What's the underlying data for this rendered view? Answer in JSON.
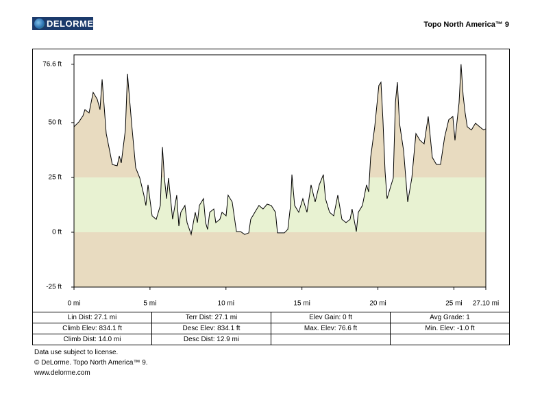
{
  "header": {
    "logo": "DELORME",
    "product": "Topo North America™ 9"
  },
  "chart_data": {
    "type": "area",
    "x": [
      0,
      0.32,
      0.59,
      0.72,
      0.99,
      1.26,
      1.53,
      1.71,
      1.85,
      2.12,
      2.39,
      2.52,
      2.84,
      2.98,
      3.11,
      3.38,
      3.52,
      3.79,
      4.06,
      4.33,
      4.6,
      4.73,
      4.87,
      5.14,
      5.41,
      5.68,
      5.82,
      5.95,
      6.09,
      6.22,
      6.49,
      6.76,
      6.9,
      7.03,
      7.3,
      7.44,
      7.71,
      7.98,
      8.12,
      8.25,
      8.52,
      8.66,
      8.79,
      8.93,
      9.2,
      9.33,
      9.6,
      9.74,
      10.01,
      10.14,
      10.41,
      10.69,
      10.96,
      11.23,
      11.5,
      11.63,
      11.9,
      12.17,
      12.44,
      12.71,
      12.98,
      13.26,
      13.39,
      13.84,
      14.07,
      14.25,
      14.34,
      14.52,
      14.79,
      15.06,
      15.33,
      15.6,
      15.87,
      16.14,
      16.41,
      16.55,
      16.82,
      17.09,
      17.36,
      17.63,
      17.9,
      18.17,
      18.3,
      18.58,
      18.71,
      18.98,
      19.25,
      19.39,
      19.52,
      19.79,
      20.06,
      20.2,
      20.33,
      20.47,
      20.6,
      20.87,
      21.01,
      21.15,
      21.28,
      21.42,
      21.69,
      21.96,
      22.23,
      22.5,
      22.77,
      23.04,
      23.31,
      23.58,
      23.85,
      24.12,
      24.39,
      24.66,
      24.93,
      25.07,
      25.34,
      25.47,
      25.61,
      25.74,
      25.88,
      26.15,
      26.42,
      26.69,
      26.96,
      27.1
    ],
    "values": [
      48.1,
      50.3,
      53.1,
      55.9,
      54.4,
      63.8,
      60.6,
      55.9,
      69.7,
      45.0,
      35.6,
      30.9,
      30.3,
      34.7,
      31.6,
      46.6,
      72.2,
      49.7,
      29.4,
      24.7,
      16.9,
      12.2,
      21.6,
      7.5,
      5.9,
      12.2,
      38.8,
      24.7,
      15.3,
      24.7,
      5.9,
      16.9,
      2.8,
      9.1,
      12.2,
      4.4,
      -1.0,
      9.1,
      4.4,
      12.2,
      15.3,
      4.4,
      1.3,
      9.1,
      10.6,
      4.4,
      5.9,
      9.1,
      7.5,
      16.9,
      13.8,
      0.3,
      0.3,
      -1.0,
      -0.3,
      5.9,
      9.1,
      12.2,
      10.6,
      12.8,
      12.2,
      9.1,
      -0.3,
      -0.3,
      1.3,
      12.2,
      26.3,
      12.2,
      9.1,
      15.3,
      9.1,
      21.6,
      13.8,
      21.6,
      26.3,
      15.3,
      9.1,
      7.5,
      16.9,
      5.9,
      4.4,
      5.9,
      10.6,
      0.3,
      9.1,
      12.2,
      21.6,
      18.4,
      34.1,
      48.1,
      66.9,
      68.4,
      51.3,
      27.8,
      15.3,
      21.6,
      24.7,
      59.1,
      68.4,
      49.7,
      37.2,
      13.8,
      24.7,
      45.0,
      41.9,
      40.3,
      52.8,
      34.1,
      30.9,
      30.9,
      43.4,
      51.3,
      52.8,
      41.9,
      59.1,
      76.6,
      62.2,
      54.4,
      48.1,
      46.6,
      49.7,
      48.1,
      46.6,
      47.2
    ],
    "color": "#000000",
    "bands": [
      {
        "from": -25,
        "to": 0,
        "color": "#e8dbc0"
      },
      {
        "from": 0,
        "to": 25,
        "color": "#e8f2d2"
      },
      {
        "from": 25,
        "to": 80.9,
        "color": "#e8dbc0"
      }
    ],
    "xlim": [
      0,
      27.1
    ],
    "ylim": [
      -25,
      80.9
    ],
    "xticks": [
      {
        "value": 0,
        "label": "0 mi"
      },
      {
        "value": 5,
        "label": "5 mi"
      },
      {
        "value": 10,
        "label": "10 mi"
      },
      {
        "value": 15,
        "label": "15 mi"
      },
      {
        "value": 20,
        "label": "20 mi"
      },
      {
        "value": 25,
        "label": "25 mi"
      },
      {
        "value": 27.1,
        "label": "27.10 mi"
      }
    ],
    "yticks": [
      {
        "value": -25,
        "label": "-25 ft"
      },
      {
        "value": 0,
        "label": "0 ft"
      },
      {
        "value": 25,
        "label": "25 ft"
      },
      {
        "value": 50,
        "label": "50 ft"
      },
      {
        "value": 76.6,
        "label": "76.6 ft"
      }
    ]
  },
  "stats": [
    [
      "Lin Dist:  27.1 mi",
      "Terr Dist:  27.1 mi",
      "Elev Gain:  0 ft",
      "Avg Grade:  1"
    ],
    [
      "Climb Elev:  834.1 ft",
      "Desc Elev:  834.1 ft",
      "Max. Elev:  76.6 ft",
      "Min. Elev:  -1.0 ft"
    ],
    [
      "Climb Dist:  14.0 mi",
      "Desc Dist:  12.9 mi"
    ]
  ],
  "footer": [
    "Data use subject to license.",
    "© DeLorme. Topo North America™ 9.",
    "www.delorme.com"
  ]
}
